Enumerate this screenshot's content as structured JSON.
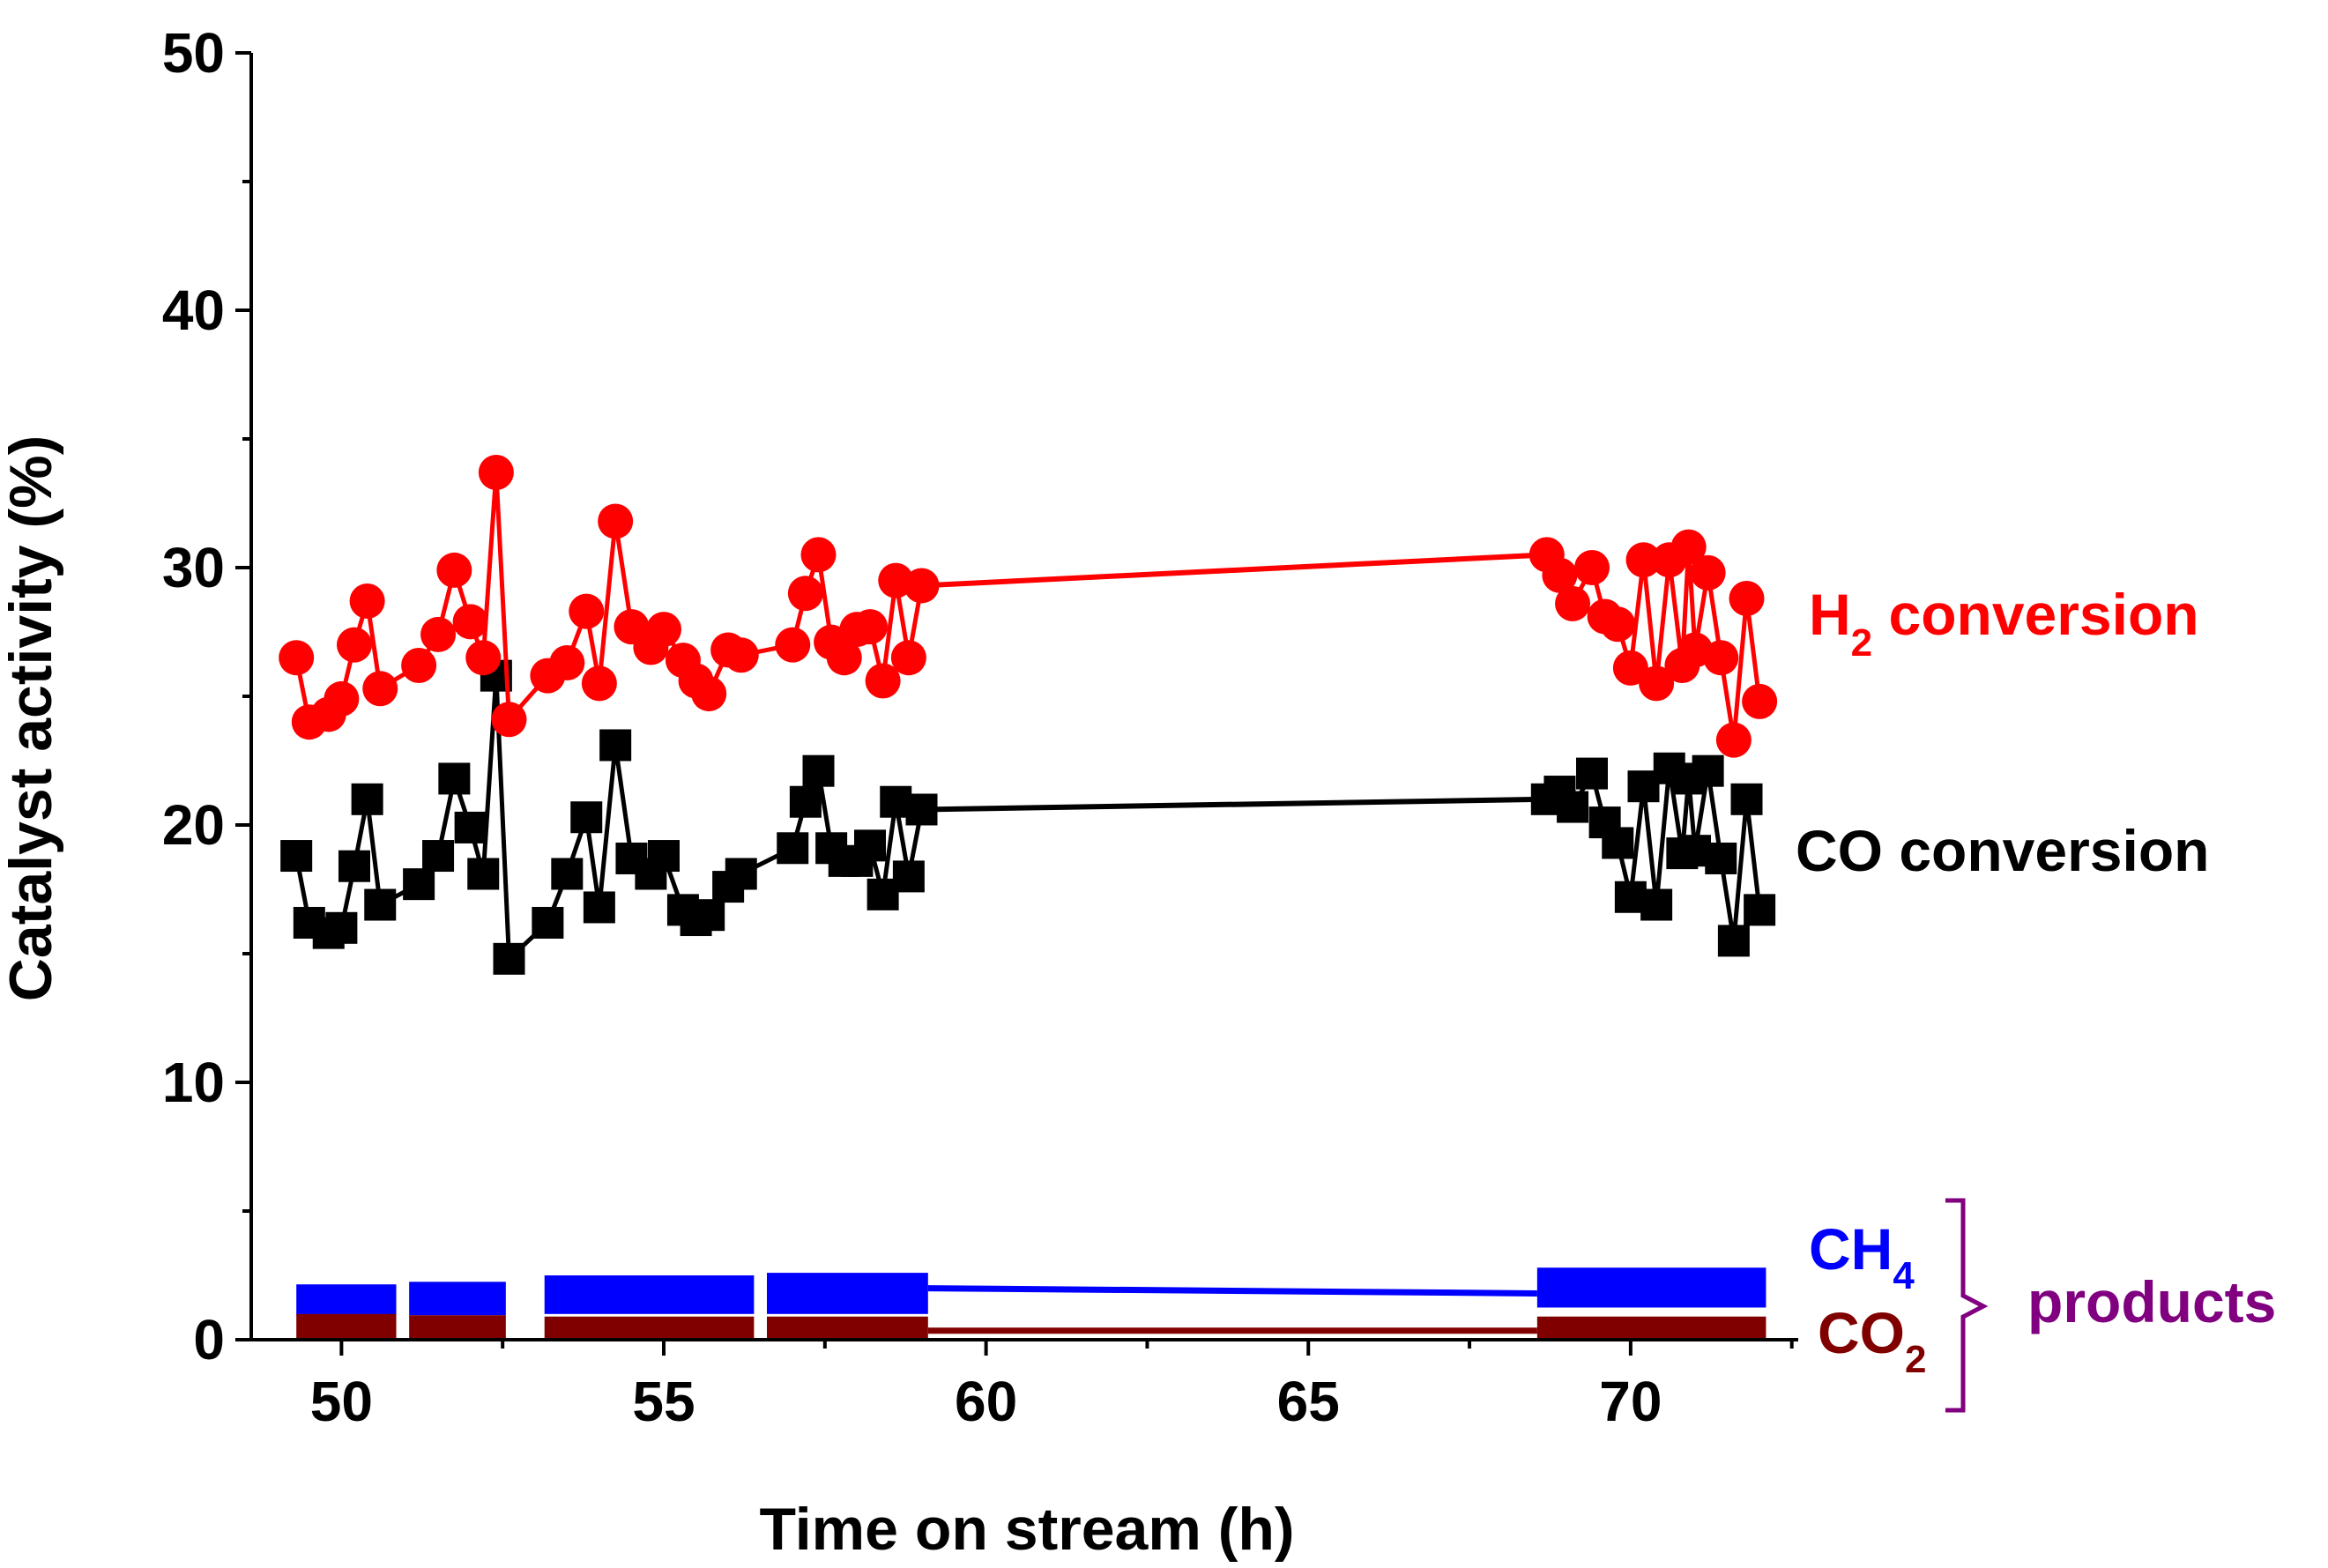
{
  "chart_data": {
    "type": "scatter",
    "xlabel": "Time on stream (h)",
    "ylabel": "Catalyst activity (%)",
    "xlim": [
      48.6,
      72.6
    ],
    "ylim": [
      0,
      50
    ],
    "xticks": [
      50,
      55,
      60,
      65,
      70
    ],
    "yticks": [
      0,
      10,
      20,
      30,
      40,
      50
    ],
    "grid": false,
    "series": [
      {
        "name": "H2 conversion",
        "label_main": "H",
        "label_sub": "2",
        "label_rest": " conversion",
        "color": "#ff0000",
        "marker": "circle",
        "x": [
          49.3,
          49.5,
          49.8,
          50.0,
          50.2,
          50.4,
          50.6,
          51.2,
          51.5,
          51.75,
          52.0,
          52.2,
          52.4,
          52.6,
          53.2,
          53.5,
          53.8,
          54.0,
          54.25,
          54.5,
          54.8,
          55.0,
          55.3,
          55.5,
          55.7,
          56.0,
          56.2,
          57.0,
          57.2,
          57.4,
          57.6,
          57.8,
          58.0,
          58.2,
          58.4,
          58.6,
          58.8,
          59.0,
          68.7,
          68.9,
          69.1,
          69.4,
          69.6,
          69.8,
          70.0,
          70.2,
          70.4,
          70.6,
          70.8,
          70.9,
          71.0,
          71.2,
          71.4,
          71.6,
          71.8,
          72.0
        ],
        "y": [
          26.5,
          24.0,
          24.3,
          24.9,
          27.0,
          28.7,
          25.3,
          26.2,
          27.4,
          29.9,
          27.9,
          26.5,
          33.7,
          24.1,
          25.8,
          26.3,
          28.3,
          25.5,
          31.8,
          27.7,
          26.9,
          27.6,
          26.4,
          25.6,
          25.1,
          26.8,
          26.6,
          27.0,
          29.0,
          30.5,
          27.1,
          26.5,
          27.6,
          27.7,
          25.6,
          29.5,
          26.5,
          29.3,
          30.5,
          29.7,
          28.6,
          30.0,
          28.1,
          27.8,
          26.1,
          30.3,
          25.5,
          30.3,
          26.2,
          30.8,
          26.8,
          29.8,
          26.5,
          23.3,
          28.8,
          24.8
        ],
        "trend_line": {
          "x": [
            59.0,
            68.7
          ],
          "y": [
            29.3,
            30.5
          ]
        }
      },
      {
        "name": "CO conversion",
        "label_main": "CO conversion",
        "color": "#000000",
        "marker": "square",
        "x": [
          49.3,
          49.5,
          49.8,
          50.0,
          50.2,
          50.4,
          50.6,
          51.2,
          51.5,
          51.75,
          52.0,
          52.2,
          52.4,
          52.6,
          53.2,
          53.5,
          53.8,
          54.0,
          54.25,
          54.5,
          54.8,
          55.0,
          55.3,
          55.5,
          55.7,
          56.0,
          56.2,
          57.0,
          57.2,
          57.4,
          57.6,
          57.8,
          58.0,
          58.2,
          58.4,
          58.6,
          58.8,
          59.0,
          68.7,
          68.9,
          69.1,
          69.4,
          69.6,
          69.8,
          70.0,
          70.2,
          70.4,
          70.6,
          70.8,
          70.9,
          71.0,
          71.2,
          71.4,
          71.6,
          71.8,
          72.0
        ],
        "y": [
          18.8,
          16.2,
          15.8,
          16.0,
          18.4,
          21.0,
          16.9,
          17.7,
          18.8,
          21.8,
          19.9,
          18.1,
          25.8,
          14.8,
          16.2,
          18.1,
          20.3,
          16.8,
          23.1,
          18.7,
          18.1,
          18.8,
          16.7,
          16.3,
          16.5,
          17.6,
          18.1,
          19.1,
          20.9,
          22.1,
          19.1,
          18.6,
          18.6,
          19.2,
          17.3,
          20.9,
          18.0,
          20.6,
          21.0,
          21.3,
          20.7,
          22.0,
          20.1,
          19.3,
          17.2,
          21.5,
          16.9,
          22.2,
          18.9,
          21.8,
          19.0,
          22.1,
          18.7,
          15.5,
          21.0,
          16.7
        ],
        "trend_line": {
          "x": [
            59.0,
            68.7
          ],
          "y": [
            20.6,
            21.0
          ]
        }
      },
      {
        "name": "CH4",
        "label_main": "CH",
        "label_sub": "4",
        "color": "#0000ff",
        "marker": "band",
        "segments": [
          {
            "x0": 49.3,
            "x1": 50.85,
            "lo": 0.95,
            "hi": 2.15
          },
          {
            "x0": 51.05,
            "x1": 52.55,
            "lo": 0.95,
            "hi": 2.25
          },
          {
            "x0": 53.15,
            "x1": 56.4,
            "lo": 1.0,
            "hi": 2.5
          },
          {
            "x0": 56.6,
            "x1": 59.1,
            "lo": 1.0,
            "hi": 2.6
          },
          {
            "x0": 68.55,
            "x1": 72.1,
            "lo": 1.25,
            "hi": 2.8
          }
        ],
        "trend_line": {
          "x": [
            59.1,
            68.55
          ],
          "y": [
            2.0,
            1.8
          ]
        }
      },
      {
        "name": "CO2",
        "label_main": "CO",
        "label_sub": "2",
        "color": "#800000",
        "marker": "band",
        "segments": [
          {
            "x0": 49.3,
            "x1": 50.85,
            "lo": 0.0,
            "hi": 1.0
          },
          {
            "x0": 51.05,
            "x1": 52.55,
            "lo": 0.0,
            "hi": 0.95
          },
          {
            "x0": 53.15,
            "x1": 56.4,
            "lo": 0.0,
            "hi": 0.9
          },
          {
            "x0": 56.6,
            "x1": 59.1,
            "lo": 0.0,
            "hi": 0.9
          },
          {
            "x0": 68.55,
            "x1": 72.1,
            "lo": 0.0,
            "hi": 0.9
          }
        ],
        "trend_line": {
          "x": [
            59.1,
            68.55
          ],
          "y": [
            0.35,
            0.35
          ]
        }
      }
    ],
    "annotations": [
      {
        "text": "products",
        "color": "#800080",
        "refers_to": [
          "CH4",
          "CO2"
        ]
      }
    ]
  }
}
